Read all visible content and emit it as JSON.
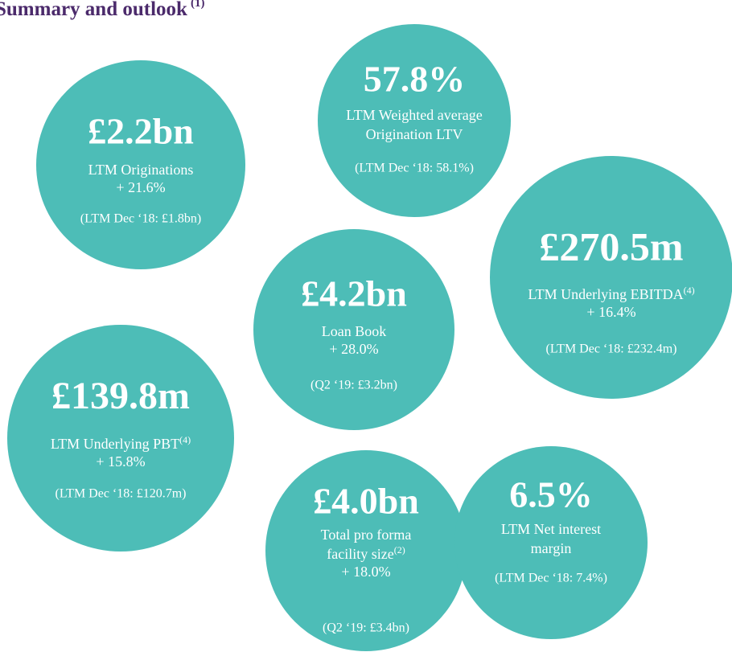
{
  "header": {
    "title": "Summary and outlook",
    "title_sup": "(1)"
  },
  "circles": [
    {
      "value": "£2.2bn",
      "label": [
        {
          "text": "LTM Originations"
        }
      ],
      "change": "+ 21.6%",
      "comparison": "(LTM Dec ‘18: £1.8bn)"
    },
    {
      "value": "57.8%",
      "label": [
        {
          "text": "LTM Weighted average"
        },
        {
          "text": "Origination LTV"
        }
      ],
      "comparison": "(LTM Dec ‘18: 58.1%)"
    },
    {
      "value": "£4.2bn",
      "label": [
        {
          "text": "Loan Book"
        }
      ],
      "change": "+ 28.0%",
      "comparison": "(Q2 ‘19: £3.2bn)"
    },
    {
      "value": "£270.5m",
      "label": [
        {
          "text": "LTM Underlying EBITDA",
          "sup": "(4)"
        }
      ],
      "change": "+ 16.4%",
      "comparison": "(LTM Dec ‘18: £232.4m)"
    },
    {
      "value": "£139.8m",
      "label": [
        {
          "text": "LTM Underlying PBT",
          "sup": "(4)"
        }
      ],
      "change": "+ 15.8%",
      "comparison": "(LTM Dec ‘18: £120.7m)"
    },
    {
      "value": "£4.0bn",
      "label": [
        {
          "text": "Total pro forma"
        },
        {
          "text": "facility size",
          "sup": "(2)"
        }
      ],
      "change": "+ 18.0%",
      "comparison": "(Q2 ‘19: £3.4bn)"
    },
    {
      "value": "6.5%",
      "label": [
        {
          "text": "LTM Net interest"
        },
        {
          "text": "margin"
        }
      ],
      "comparison": "(LTM Dec ‘18: 7.4%)"
    }
  ]
}
